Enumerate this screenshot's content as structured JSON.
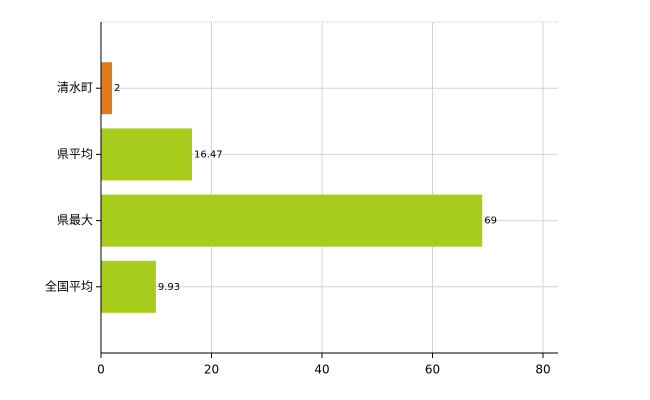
{
  "chart_data": {
    "type": "hbar",
    "categories": [
      "清水町",
      "県平均",
      "県最大",
      "全国平均"
    ],
    "values": [
      2,
      16.47,
      69,
      9.93
    ],
    "colors": [
      "#e07b20",
      "#a8cc1c",
      "#a8cc1c",
      "#a8cc1c"
    ],
    "xlim": [
      0,
      80
    ],
    "xticks": [
      0,
      20,
      40,
      60,
      80
    ],
    "grid": true
  }
}
